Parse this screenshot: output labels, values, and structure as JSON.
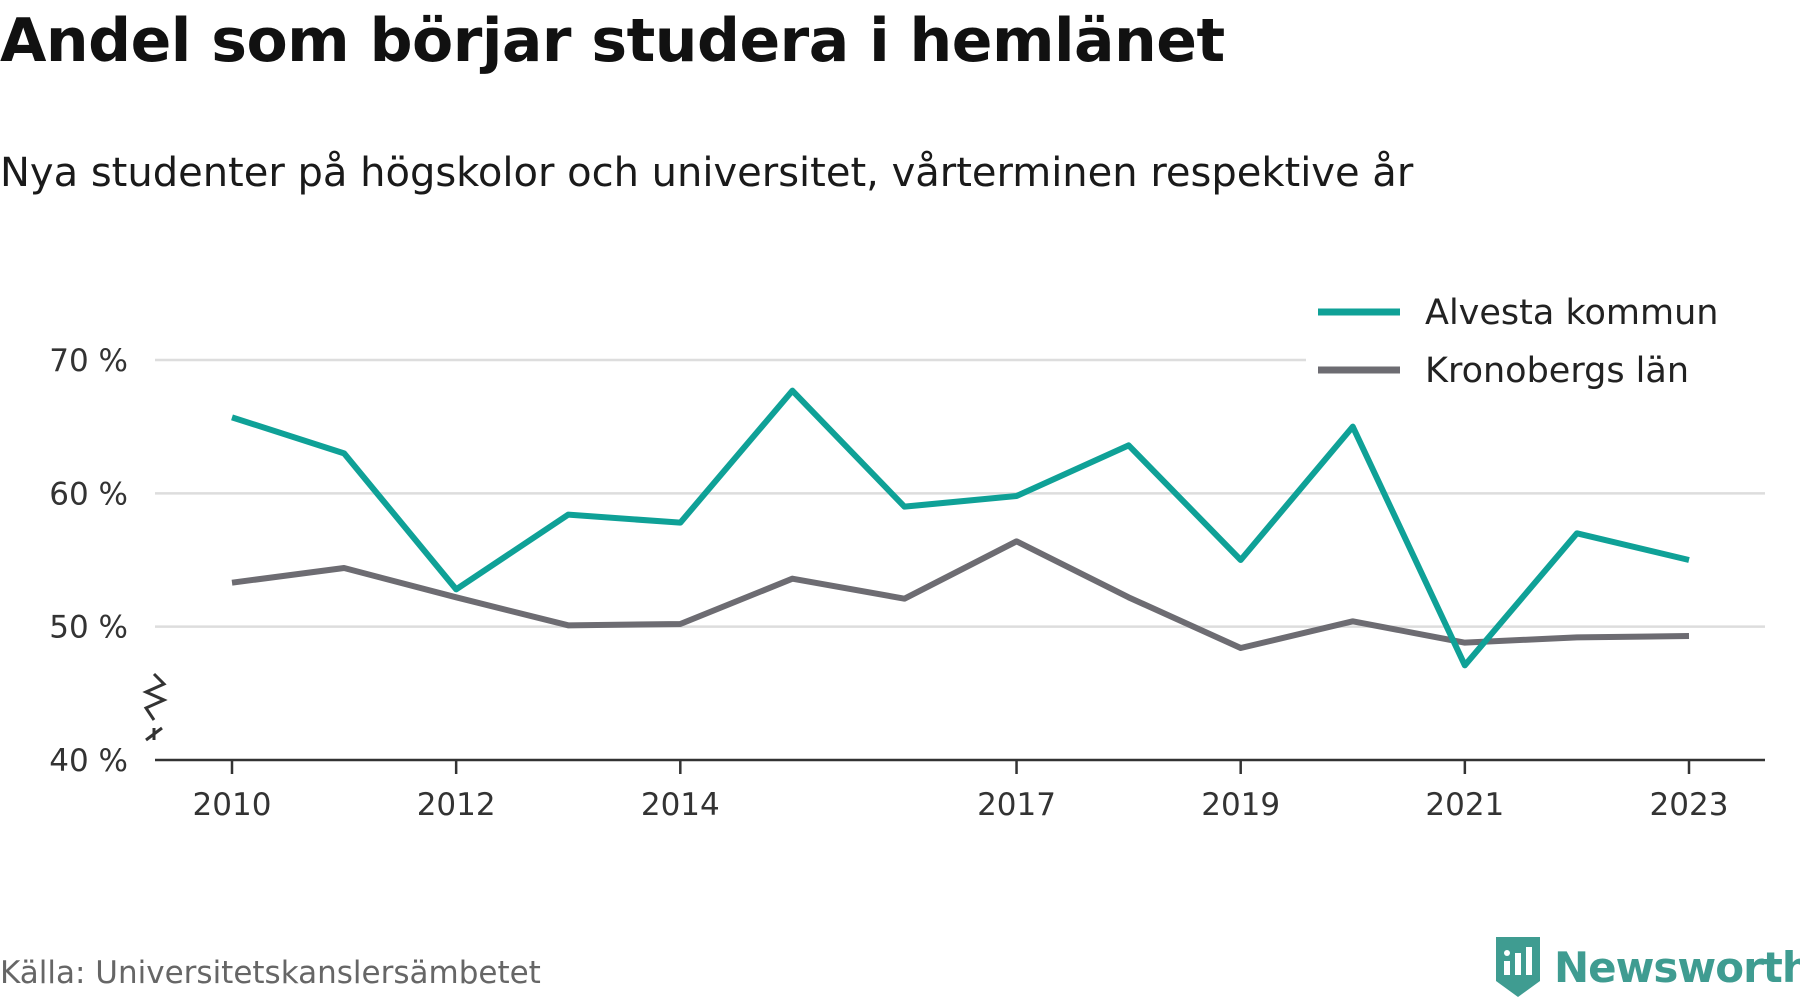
{
  "title": "Andel som börjar studera i hemlänet",
  "subtitle": "Nya studenter på högskolor och universitet, vårterminen respektive år",
  "source": "Källa: Universitetskanslersämbetet",
  "brand": "Newsworthy",
  "colors": {
    "teal": "#0fa197",
    "gray": "#6d6c72",
    "grid": "#dddddd",
    "axis": "#333333",
    "brand": "#3f9c91"
  },
  "chart_data": {
    "type": "line",
    "x": [
      2010,
      2011,
      2012,
      2013,
      2014,
      2015,
      2016,
      2017,
      2018,
      2019,
      2020,
      2021,
      2022,
      2023
    ],
    "xticks": [
      "2010",
      "2012",
      "2014",
      "2017",
      "2019",
      "2021",
      "2023"
    ],
    "yticks": [
      "40 %",
      "50 %",
      "60 %",
      "70 %"
    ],
    "ylim": [
      40,
      70
    ],
    "y_axis_break": true,
    "grid": true,
    "legend": "top-right",
    "series": [
      {
        "name": "Alvesta kommun",
        "color": "#0fa197",
        "values": [
          65.7,
          63.0,
          52.8,
          58.4,
          57.8,
          67.7,
          59.0,
          59.8,
          63.6,
          55.0,
          65.0,
          47.1,
          57.0,
          55.0
        ]
      },
      {
        "name": "Kronobergs län",
        "color": "#6d6c72",
        "values": [
          53.3,
          54.4,
          52.2,
          50.1,
          50.2,
          53.6,
          52.1,
          56.4,
          52.2,
          48.4,
          50.4,
          48.8,
          49.2,
          49.3
        ]
      }
    ]
  }
}
